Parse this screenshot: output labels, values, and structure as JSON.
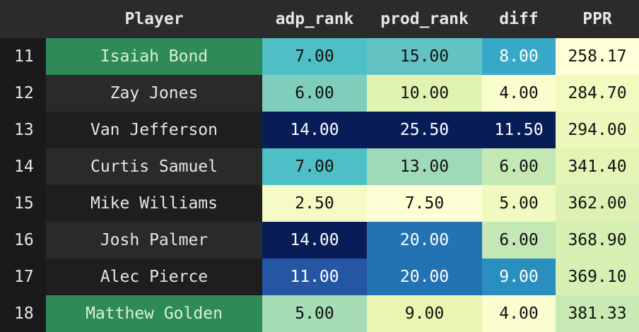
{
  "table": {
    "columns": [
      "Player",
      "adp_rank",
      "prod_rank",
      "diff",
      "PPR"
    ],
    "rows": [
      {
        "index": "11",
        "cells": [
          "Isaiah Bond",
          "7.00",
          "15.00",
          "8.00",
          "258.17"
        ]
      },
      {
        "index": "12",
        "cells": [
          "Zay Jones",
          "6.00",
          "10.00",
          "4.00",
          "284.70"
        ]
      },
      {
        "index": "13",
        "cells": [
          "Van Jefferson",
          "14.00",
          "25.50",
          "11.50",
          "294.00"
        ]
      },
      {
        "index": "14",
        "cells": [
          "Curtis Samuel",
          "7.00",
          "13.00",
          "6.00",
          "341.40"
        ]
      },
      {
        "index": "15",
        "cells": [
          "Mike Williams",
          "2.50",
          "7.50",
          "5.00",
          "362.00"
        ]
      },
      {
        "index": "16",
        "cells": [
          "Josh Palmer",
          "14.00",
          "20.00",
          "6.00",
          "368.90"
        ]
      },
      {
        "index": "17",
        "cells": [
          "Alec Pierce",
          "11.00",
          "20.00",
          "9.00",
          "369.10"
        ]
      },
      {
        "index": "18",
        "cells": [
          "Matthew Golden",
          "5.00",
          "9.00",
          "4.00",
          "381.33"
        ]
      }
    ]
  }
}
